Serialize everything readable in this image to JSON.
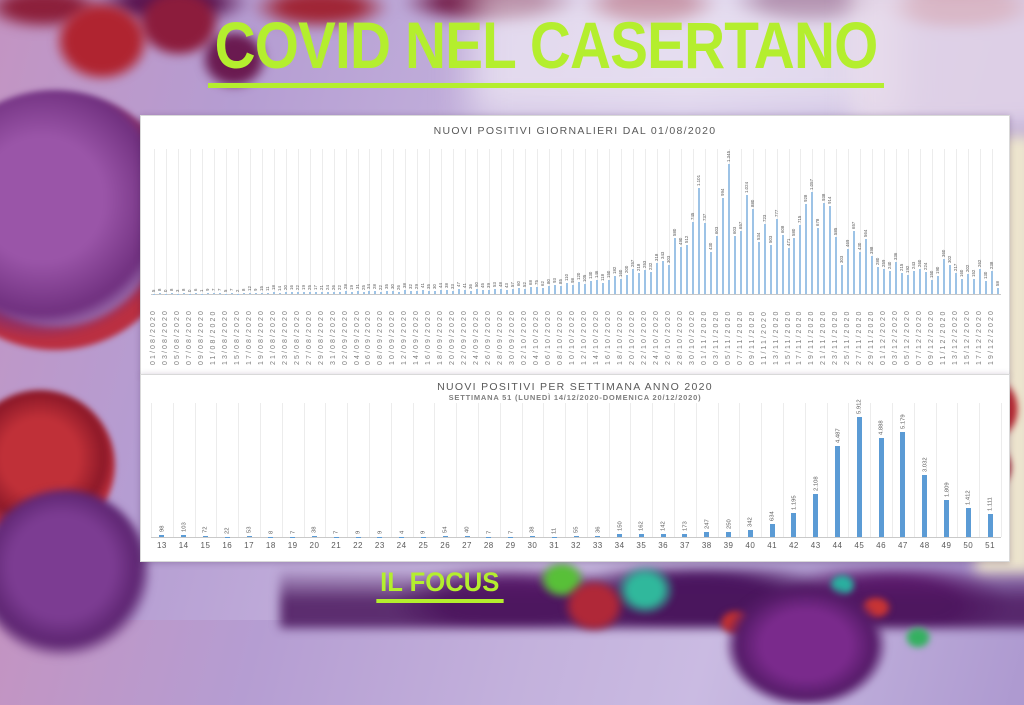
{
  "page": {
    "title": "COVID NEL CASERTANO",
    "footer": "IL FOCUS",
    "accent_green": "#b4ee2e"
  },
  "chart_data": [
    {
      "type": "bar",
      "title": "NUOVI POSITIVI GIORNALIERI DAL 01/08/2020",
      "bar_color": "#9dc3e6",
      "grid": true,
      "legend": "none",
      "ylim": [
        0,
        1500
      ],
      "x_tick_labels": [
        "01/08/2020",
        "03/08/2020",
        "05/08/2020",
        "07/08/2020",
        "09/08/2020",
        "11/08/2020",
        "13/08/2020",
        "15/08/2020",
        "17/08/2020",
        "19/08/2020",
        "21/08/2020",
        "23/08/2020",
        "25/08/2020",
        "27/08/2020",
        "29/08/2020",
        "31/08/2020",
        "02/09/2020",
        "04/09/2020",
        "06/09/2020",
        "08/09/2020",
        "10/09/2020",
        "12/09/2020",
        "14/09/2020",
        "16/09/2020",
        "18/09/2020",
        "20/09/2020",
        "22/09/2020",
        "24/09/2020",
        "26/09/2020",
        "28/09/2020",
        "30/09/2020",
        "02/10/2020",
        "04/10/2020",
        "06/10/2020",
        "08/10/2020",
        "10/10/2020",
        "12/10/2020",
        "14/10/2020",
        "16/10/2020",
        "18/10/2020",
        "20/10/2020",
        "22/10/2020",
        "24/10/2020",
        "26/10/2020",
        "28/10/2020",
        "30/10/2020",
        "01/11/2020",
        "03/11/2020",
        "05/11/2020",
        "07/11/2020",
        "09/11/2020",
        "11/11/2020",
        "13/11/2020",
        "15/11/2020",
        "17/11/2020",
        "19/11/2020",
        "21/11/2020",
        "23/11/2020",
        "25/11/2020",
        "27/11/2020",
        "29/11/2020",
        "01/12/2020",
        "03/12/2020",
        "05/12/2020",
        "07/12/2020",
        "09/12/2020",
        "11/12/2020",
        "13/12/2020",
        "15/12/2020",
        "17/12/2020",
        "19/12/2020"
      ],
      "values": [
        5,
        8,
        0,
        8,
        3,
        8,
        0,
        6,
        1,
        9,
        7,
        7,
        5,
        7,
        2,
        8,
        12,
        9,
        15,
        11,
        18,
        14,
        20,
        16,
        22,
        19,
        25,
        17,
        21,
        24,
        26,
        22,
        28,
        19,
        31,
        25,
        34,
        28,
        22,
        35,
        30,
        26,
        38,
        32,
        29,
        41,
        35,
        30,
        44,
        38,
        33,
        47,
        41,
        36,
        50,
        45,
        39,
        53,
        48,
        43,
        57,
        60,
        52,
        68,
        75,
        62,
        80,
        93,
        85,
        110,
        98,
        120,
        105,
        130,
        146,
        118,
        150,
        182,
        160,
        200,
        257,
        218,
        253,
        232,
        318,
        343,
        303,
        580,
        490,
        512,
        745,
        1101,
        737,
        430,
        603,
        994,
        1345,
        603,
        657,
        1024,
        880,
        534,
        723,
        503,
        777,
        608,
        471,
        580,
        715,
        928,
        1057,
        678,
        938,
        914,
        585,
        303,
        469,
        657,
        430,
        564,
        398,
        280,
        259,
        240,
        336,
        215,
        192,
        243,
        260,
        224,
        150,
        190,
        360,
        302,
        217,
        160,
        202,
        152,
        262,
        130,
        238,
        58
      ]
    },
    {
      "type": "bar",
      "title": "NUOVI POSITIVI PER SETTIMANA ANNO 2020",
      "subtitle": "SETTIMANA 51 (LUNEDÌ 14/12/2020-DOMENICA 20/12/2020)",
      "bar_color": "#5b9bd5",
      "grid": true,
      "legend": "none",
      "ylim": [
        0,
        6600
      ],
      "categories": [
        13,
        14,
        15,
        16,
        17,
        18,
        19,
        20,
        21,
        22,
        23,
        24,
        25,
        26,
        27,
        28,
        29,
        30,
        31,
        32,
        33,
        34,
        35,
        36,
        37,
        38,
        39,
        40,
        41,
        42,
        43,
        44,
        45,
        46,
        47,
        48,
        49,
        50,
        51
      ],
      "values": [
        98,
        103,
        72,
        22,
        53,
        8,
        7,
        38,
        7,
        9,
        9,
        4,
        9,
        54,
        40,
        7,
        7,
        38,
        11,
        55,
        36,
        150,
        162,
        142,
        173,
        247,
        250,
        342,
        634,
        1195,
        2108,
        4487,
        5912,
        4888,
        5179,
        3032,
        1809,
        1412,
        1111
      ]
    }
  ]
}
